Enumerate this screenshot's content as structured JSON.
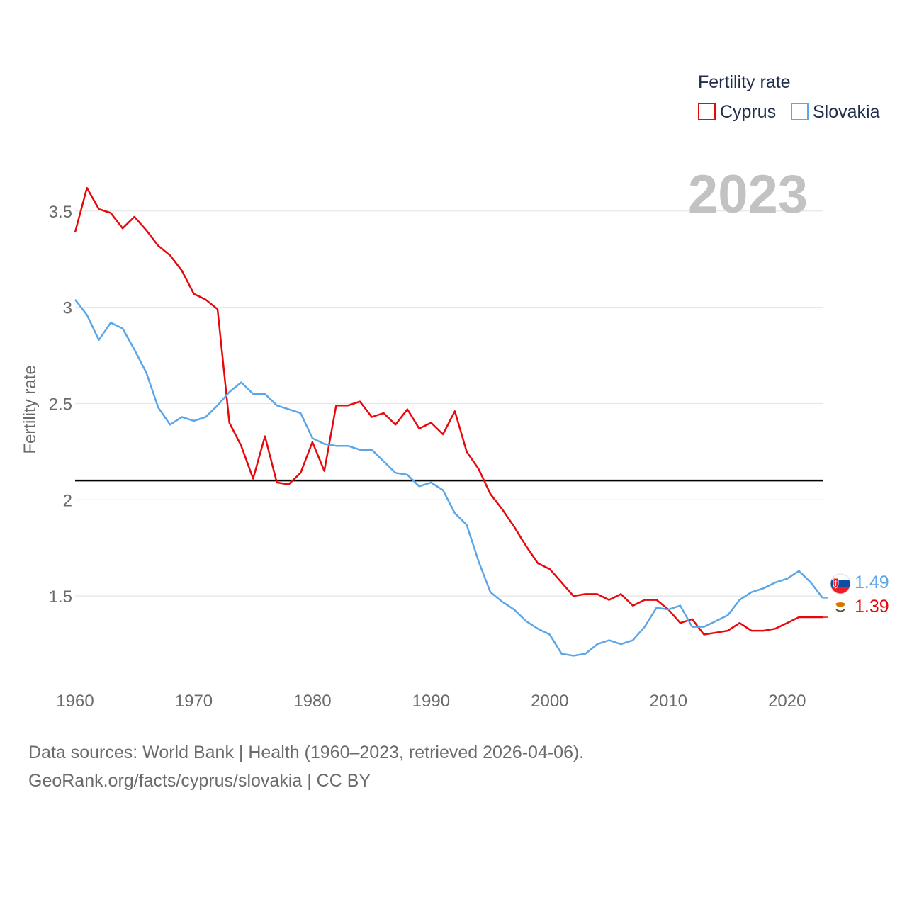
{
  "chart_data": {
    "type": "line",
    "legend_title": "Fertility rate",
    "year_label": "2023",
    "ylabel": "Fertility rate",
    "xlabel": "",
    "x_ticks": [
      "1960",
      "1970",
      "1980",
      "1990",
      "2000",
      "2010",
      "2020"
    ],
    "y_ticks": [
      "1.5",
      "2",
      "2.5",
      "3",
      "3.5"
    ],
    "y_tick_values": [
      1.5,
      2,
      2.5,
      3,
      3.5
    ],
    "x_tick_values": [
      1960,
      1970,
      1980,
      1990,
      2000,
      2010,
      2020
    ],
    "xlim": [
      1960,
      2023
    ],
    "ylim": [
      1.0,
      3.72
    ],
    "reference_line": 2.1,
    "x": [
      1960,
      1961,
      1962,
      1963,
      1964,
      1965,
      1966,
      1967,
      1968,
      1969,
      1970,
      1971,
      1972,
      1973,
      1974,
      1975,
      1976,
      1977,
      1978,
      1979,
      1980,
      1981,
      1982,
      1983,
      1984,
      1985,
      1986,
      1987,
      1988,
      1989,
      1990,
      1991,
      1992,
      1993,
      1994,
      1995,
      1996,
      1997,
      1998,
      1999,
      2000,
      2001,
      2002,
      2003,
      2004,
      2005,
      2006,
      2007,
      2008,
      2009,
      2010,
      2011,
      2012,
      2013,
      2014,
      2015,
      2016,
      2017,
      2018,
      2019,
      2020,
      2021,
      2022,
      2023
    ],
    "series": [
      {
        "name": "Cyprus",
        "color": "#e8080b",
        "end_label": "1.39",
        "flag": "cyprus-flag",
        "values": [
          3.39,
          3.62,
          3.51,
          3.49,
          3.41,
          3.47,
          3.4,
          3.32,
          3.27,
          3.19,
          3.07,
          3.04,
          2.99,
          2.4,
          2.28,
          2.11,
          2.33,
          2.09,
          2.08,
          2.14,
          2.3,
          2.15,
          2.49,
          2.49,
          2.51,
          2.43,
          2.45,
          2.39,
          2.47,
          2.37,
          2.4,
          2.34,
          2.46,
          2.25,
          2.16,
          2.03,
          1.95,
          1.86,
          1.76,
          1.67,
          1.64,
          1.57,
          1.5,
          1.51,
          1.51,
          1.48,
          1.51,
          1.45,
          1.48,
          1.48,
          1.43,
          1.36,
          1.38,
          1.3,
          1.31,
          1.32,
          1.36,
          1.32,
          1.32,
          1.33,
          1.36,
          1.39,
          1.39,
          1.39
        ]
      },
      {
        "name": "Slovakia",
        "color": "#5aa6e8",
        "end_label": "1.49",
        "flag": "slovakia-flag",
        "values": [
          3.04,
          2.96,
          2.83,
          2.92,
          2.89,
          2.78,
          2.66,
          2.48,
          2.39,
          2.43,
          2.41,
          2.43,
          2.49,
          2.56,
          2.61,
          2.55,
          2.55,
          2.49,
          2.47,
          2.45,
          2.32,
          2.29,
          2.28,
          2.28,
          2.26,
          2.26,
          2.2,
          2.14,
          2.13,
          2.07,
          2.09,
          2.05,
          1.93,
          1.87,
          1.68,
          1.52,
          1.47,
          1.43,
          1.37,
          1.33,
          1.3,
          1.2,
          1.19,
          1.2,
          1.25,
          1.27,
          1.25,
          1.27,
          1.34,
          1.44,
          1.43,
          1.45,
          1.34,
          1.34,
          1.37,
          1.4,
          1.48,
          1.52,
          1.54,
          1.57,
          1.59,
          1.63,
          1.57,
          1.49
        ]
      }
    ]
  },
  "footer": {
    "line1": "Data sources: World Bank | Health (1960–2023, retrieved 2026-04-06).",
    "line2": "GeoRank.org/facts/cyprus/slovakia | CC BY"
  }
}
